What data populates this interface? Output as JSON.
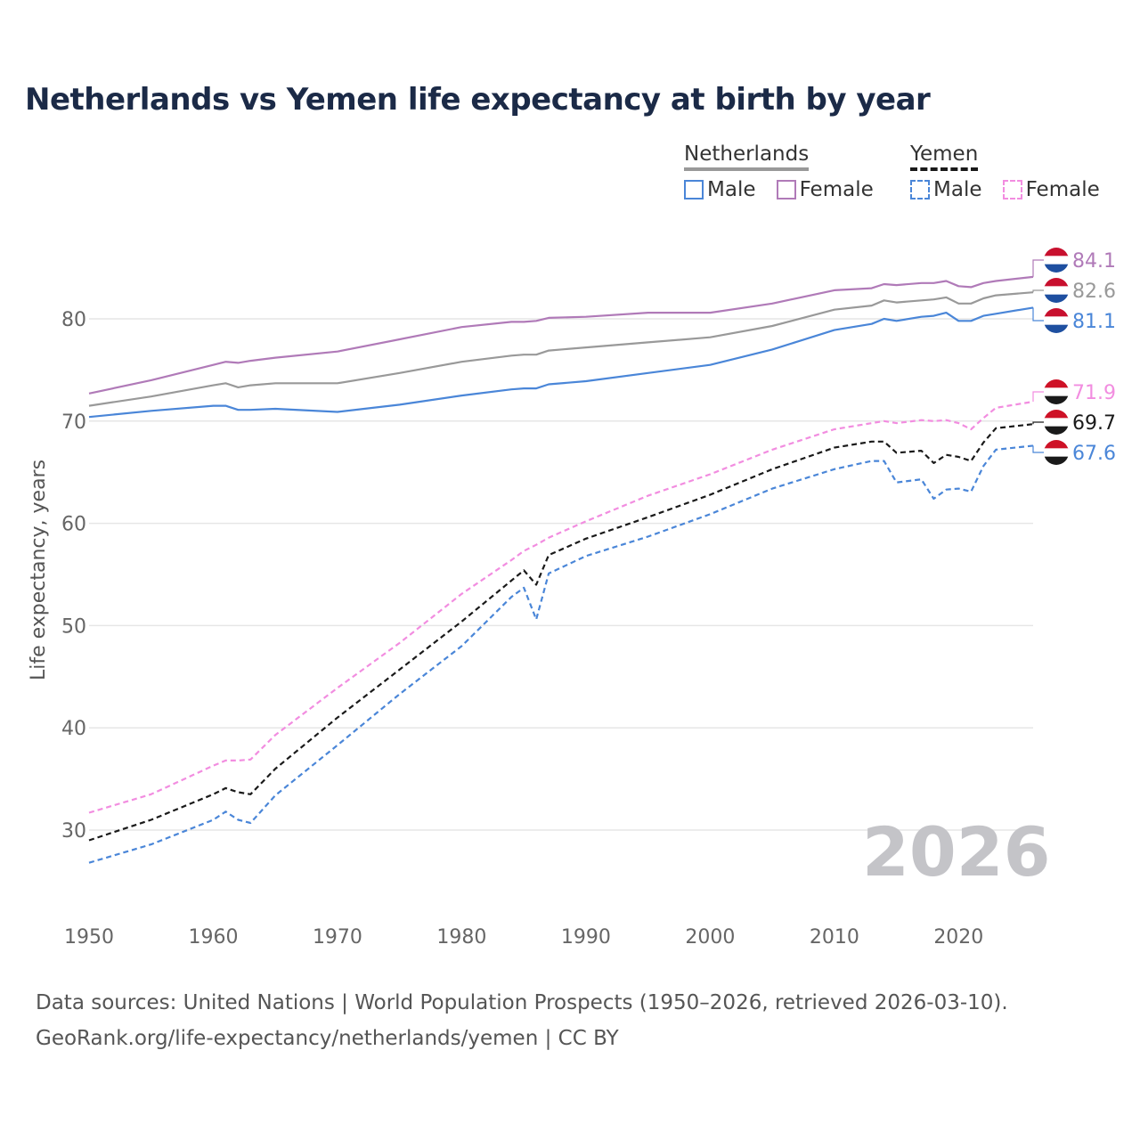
{
  "title": "Netherlands vs Yemen life expectancy at birth by year",
  "legend": {
    "groups": [
      {
        "name": "Netherlands",
        "underline_color": "#999999",
        "underline_style": "solid",
        "items": [
          {
            "label": "Male",
            "color": "#4a86d8",
            "dash": "solid"
          },
          {
            "label": "Female",
            "color": "#b07ab8",
            "dash": "solid"
          }
        ]
      },
      {
        "name": "Yemen",
        "underline_color": "#1a1a1a",
        "underline_style": "dashed",
        "items": [
          {
            "label": "Male",
            "color": "#4a86d8",
            "dash": "dashed"
          },
          {
            "label": "Female",
            "color": "#f28de0",
            "dash": "dashed"
          }
        ]
      }
    ]
  },
  "watermark_year": "2026",
  "source": {
    "line1": "Data sources: United Nations | World Population Prospects (1950–2026, retrieved 2026-03-10).",
    "line2": "GeoRank.org/life-expectancy/netherlands/yemen | CC BY"
  },
  "chart_data": {
    "type": "line",
    "title": "Netherlands vs Yemen life expectancy at birth by year",
    "xlabel": "",
    "ylabel": "Life expectancy, years",
    "xlim": [
      1950,
      2026
    ],
    "ylim": [
      22,
      88
    ],
    "x_ticks": [
      1950,
      1960,
      1970,
      1980,
      1990,
      2000,
      2010,
      2020
    ],
    "y_ticks": [
      30,
      40,
      50,
      60,
      70,
      80
    ],
    "grid": true,
    "anchors": [
      1950,
      1955,
      1960,
      1961,
      1962,
      1963,
      1965,
      1970,
      1975,
      1980,
      1984,
      1985,
      1986,
      1987,
      1990,
      1995,
      2000,
      2005,
      2010,
      2013,
      2014,
      2015,
      2017,
      2018,
      2019,
      2020,
      2021,
      2022,
      2023,
      2026
    ],
    "series": [
      {
        "name": "Netherlands Female",
        "country": "Netherlands",
        "color": "#b07ab8",
        "dash": "solid",
        "values": [
          72.7,
          74.0,
          75.5,
          75.8,
          75.7,
          75.9,
          76.2,
          76.8,
          78.0,
          79.2,
          79.7,
          79.7,
          79.8,
          80.1,
          80.2,
          80.6,
          80.6,
          81.5,
          82.8,
          83.0,
          83.4,
          83.3,
          83.5,
          83.5,
          83.7,
          83.2,
          83.1,
          83.5,
          83.7,
          84.1
        ],
        "end_label": "84.1"
      },
      {
        "name": "Netherlands Both sexes",
        "country": "Netherlands",
        "color": "#999999",
        "dash": "solid",
        "values": [
          71.5,
          72.4,
          73.5,
          73.7,
          73.3,
          73.5,
          73.7,
          73.7,
          74.7,
          75.8,
          76.4,
          76.5,
          76.5,
          76.9,
          77.2,
          77.7,
          78.2,
          79.3,
          80.9,
          81.3,
          81.8,
          81.6,
          81.8,
          81.9,
          82.1,
          81.5,
          81.5,
          82.0,
          82.3,
          82.6
        ],
        "end_label": "82.6"
      },
      {
        "name": "Netherlands Male",
        "country": "Netherlands",
        "color": "#4a86d8",
        "dash": "solid",
        "values": [
          70.4,
          71.0,
          71.5,
          71.5,
          71.1,
          71.1,
          71.2,
          70.9,
          71.6,
          72.5,
          73.1,
          73.2,
          73.2,
          73.6,
          73.9,
          74.7,
          75.5,
          77.0,
          78.9,
          79.5,
          80.0,
          79.8,
          80.2,
          80.3,
          80.6,
          79.8,
          79.8,
          80.3,
          80.5,
          81.1
        ],
        "end_label": "81.1"
      },
      {
        "name": "Yemen Female",
        "country": "Yemen",
        "color": "#f28de0",
        "dash": "dashed",
        "values": [
          31.7,
          33.5,
          36.3,
          36.8,
          36.8,
          36.9,
          39.3,
          43.9,
          48.3,
          53.1,
          56.4,
          57.3,
          57.9,
          58.6,
          60.2,
          62.7,
          64.8,
          67.2,
          69.2,
          69.8,
          70.0,
          69.8,
          70.1,
          70.0,
          70.1,
          69.8,
          69.2,
          70.3,
          71.3,
          71.9
        ],
        "end_label": "71.9"
      },
      {
        "name": "Yemen Both sexes",
        "country": "Yemen",
        "color": "#1a1a1a",
        "dash": "dashed",
        "values": [
          29.0,
          31.0,
          33.5,
          34.1,
          33.7,
          33.5,
          36.0,
          41.0,
          45.7,
          50.4,
          54.4,
          55.4,
          54.0,
          56.9,
          58.5,
          60.6,
          62.8,
          65.3,
          67.4,
          68.0,
          68.0,
          66.9,
          67.1,
          65.9,
          66.7,
          66.5,
          66.1,
          67.9,
          69.3,
          69.7
        ],
        "end_label": "69.7"
      },
      {
        "name": "Yemen Male",
        "country": "Yemen",
        "color": "#4a86d8",
        "dash": "dashed",
        "values": [
          26.8,
          28.6,
          31.0,
          31.8,
          31.0,
          30.7,
          33.4,
          38.3,
          43.3,
          48.0,
          52.8,
          53.7,
          50.6,
          55.1,
          56.8,
          58.7,
          60.9,
          63.4,
          65.3,
          66.1,
          66.1,
          64.0,
          64.3,
          62.4,
          63.3,
          63.4,
          63.1,
          65.6,
          67.2,
          67.6
        ],
        "end_label": "67.6"
      }
    ],
    "end_markers": [
      {
        "country": "Netherlands",
        "flag": "netherlands-flag",
        "colors": [
          "#c8102e",
          "#ffffff",
          "#1e4fa0"
        ]
      },
      {
        "country": "Yemen",
        "flag": "yemen-flag",
        "colors": [
          "#ce1126",
          "#ffffff",
          "#1a1a1a"
        ]
      }
    ]
  }
}
